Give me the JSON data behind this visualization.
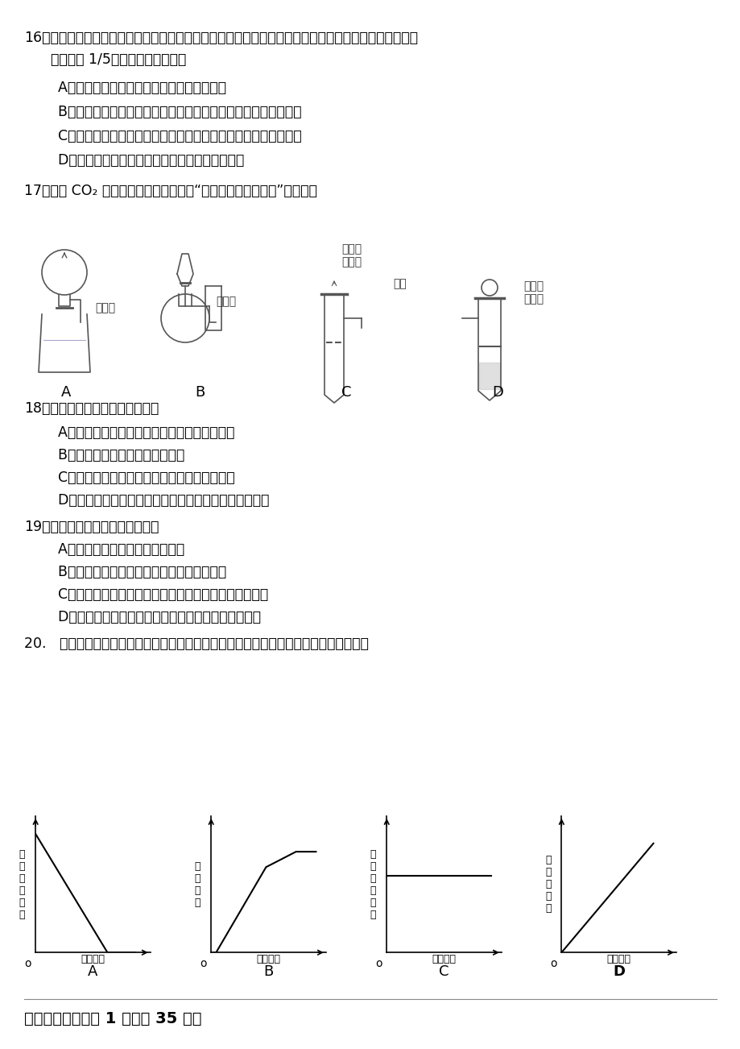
{
  "title": "",
  "bg_color": "#ffffff",
  "text_color": "#000000",
  "q16_main": "16．某班同学用右图装置测定空气里氧气的含量。实验完毕，某同学的广口瓶内水面上升明显小于瓶内空",
  "q16_cont": "      气体积的 1/5。下列解释合理的是",
  "q16_A": "    A．可能红磷的量不足，瓶内氧气没有消耗完",
  "q16_B": "    B．可能没夹紧弹簧夹，红磷燃烧时瓶内部分空气受热从导管递出",
  "q16_C": "    C．可能插入燃烧匙太慢，塞紧瓶塞之前，瓶内部分空气受热递出",
  "q16_D": "    D．可能装置漏气，冷却过程中有空气进入集气瓶",
  "q17_main": "17．下列 CO₂ 的制备装置中，不能起到“随开随制，随关随停”效果的是",
  "q18_main": "18．有关催化剂的叙述，正确的是",
  "q18_A": "    A．高锶酸钒制氧气的反应中二氧化锰是催化剂",
  "q18_B": "    B．催化剂能改变生成氧气的质量",
  "q18_C": "    C．催化剂在化学反应前后质量和化学性质不变",
  "q18_D": "    D．用过氧化氢制氧气的反应中必须用二氧化锰做催化剂",
  "q19_main": "19．实验室制取氧气正确的操作是",
  "q19_A": "    A．装药品前先检查装置的气密性",
  "q19_B": "    B．导管口开始有气泡冒出时，立即收集气体",
  "q19_C": "    C．停止加热时，应先息灭酒精灯，然后把导管移出水面",
  "q19_D": "    D．收集满氧气的集气瓶从水槽中取出后倒放在桌面上",
  "q20_main": "20.   下列图像，能正确反映加热氯酸钒和二氧化锰混合物制氧气时有关量随时间变化的是",
  "section2": "二、填空题（每空 1 分，共 35 分）",
  "chart_A_ylabel": "剩\n余\n固\n体\n质\n量",
  "chart_A_xlabel": "加热时间",
  "chart_B_ylabel": "氧\n气\n质\n量",
  "chart_B_xlabel": "加热时间",
  "chart_C_ylabel": "二\n氧\n化\n锰\n质\n量",
  "chart_C_xlabel": "加热时间",
  "chart_D_ylabel": "氯\n化\n钒\n质\n量",
  "chart_D_xlabel": "加热时间",
  "label_A": "A",
  "label_B": "B",
  "label_C": "C",
  "label_D": "D",
  "apparatus_A_label": "干燥管",
  "apparatus_B_label": "小试管",
  "apparatus_C_label": "铜网",
  "apparatus_C2_label": "可抽动\n的铜丝",
  "apparatus_D_label": "多孔塑\n料隔板"
}
